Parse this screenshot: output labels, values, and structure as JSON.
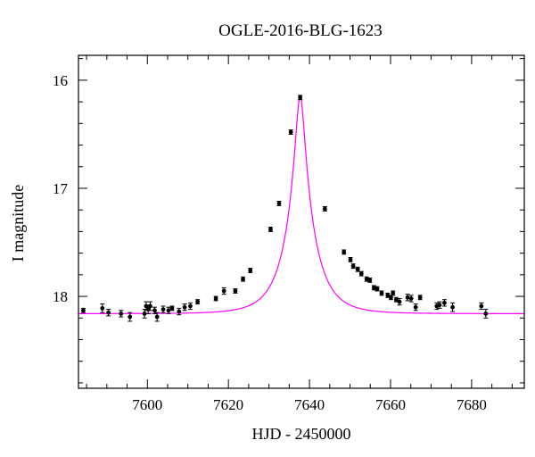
{
  "chart_data": {
    "type": "scatter",
    "title": "OGLE-2016-BLG-1623",
    "xlabel": "HJD - 2450000",
    "ylabel": "I magnitude",
    "xlim": [
      7583,
      7693
    ],
    "ylim": [
      18.85,
      15.77
    ],
    "y_axis_inverted": true,
    "grid": false,
    "x_ticks": [
      "7600",
      "7620",
      "7640",
      "7660",
      "7680"
    ],
    "y_ticks": [
      "16",
      "17",
      "18"
    ],
    "model_color": "#ff00ff",
    "point_color": "#000000",
    "model": {
      "t0": 7637.7,
      "baseline": 18.16,
      "peak": 16.15,
      "tau": 6.7
    },
    "series": [
      {
        "x": [
          7584.2,
          7588.9,
          7590.4,
          7593.5,
          7595.7,
          7599.3,
          7599.7,
          7600.2,
          7600.7,
          7601.8,
          7602.4,
          7603.9,
          7605.2,
          7606.1,
          7607.8,
          7609.2,
          7610.6,
          7612.4,
          7616.9,
          7618.9,
          7621.7,
          7623.6,
          7625.4,
          7630.4,
          7632.5,
          7635.4,
          7637.7,
          7643.8,
          7648.5,
          7650.1,
          7650.8,
          7651.9,
          7652.8,
          7654.1,
          7654.9,
          7655.9,
          7656.7,
          7657.8,
          7659.3,
          7660.1,
          7660.6,
          7661.4,
          7662.2,
          7664.2,
          7665.1,
          7666.2,
          7667.3,
          7671.4,
          7672.1,
          7673.3,
          7675.3,
          7682.4,
          7683.5
        ],
        "y": [
          18.13,
          18.11,
          18.15,
          18.16,
          18.19,
          18.16,
          18.09,
          18.12,
          18.09,
          18.13,
          18.19,
          18.12,
          18.13,
          18.11,
          18.14,
          18.1,
          18.09,
          18.05,
          18.02,
          17.95,
          17.95,
          17.84,
          17.76,
          17.38,
          17.14,
          16.48,
          16.16,
          17.19,
          17.59,
          17.66,
          17.72,
          17.75,
          17.79,
          17.84,
          17.85,
          17.92,
          17.93,
          17.97,
          17.99,
          18.01,
          17.97,
          18.03,
          18.05,
          18.01,
          18.02,
          18.1,
          18.01,
          18.09,
          18.08,
          18.06,
          18.1,
          18.09,
          18.16
        ],
        "err": [
          0.02,
          0.04,
          0.03,
          0.03,
          0.04,
          0.04,
          0.04,
          0.04,
          0.04,
          0.03,
          0.04,
          0.03,
          0.03,
          0.02,
          0.03,
          0.03,
          0.03,
          0.02,
          0.02,
          0.03,
          0.02,
          0.02,
          0.02,
          0.02,
          0.02,
          0.02,
          0.02,
          0.02,
          0.02,
          0.02,
          0.02,
          0.02,
          0.02,
          0.02,
          0.02,
          0.02,
          0.02,
          0.02,
          0.02,
          0.02,
          0.02,
          0.02,
          0.03,
          0.03,
          0.03,
          0.03,
          0.02,
          0.03,
          0.03,
          0.03,
          0.04,
          0.03,
          0.04
        ]
      }
    ]
  }
}
